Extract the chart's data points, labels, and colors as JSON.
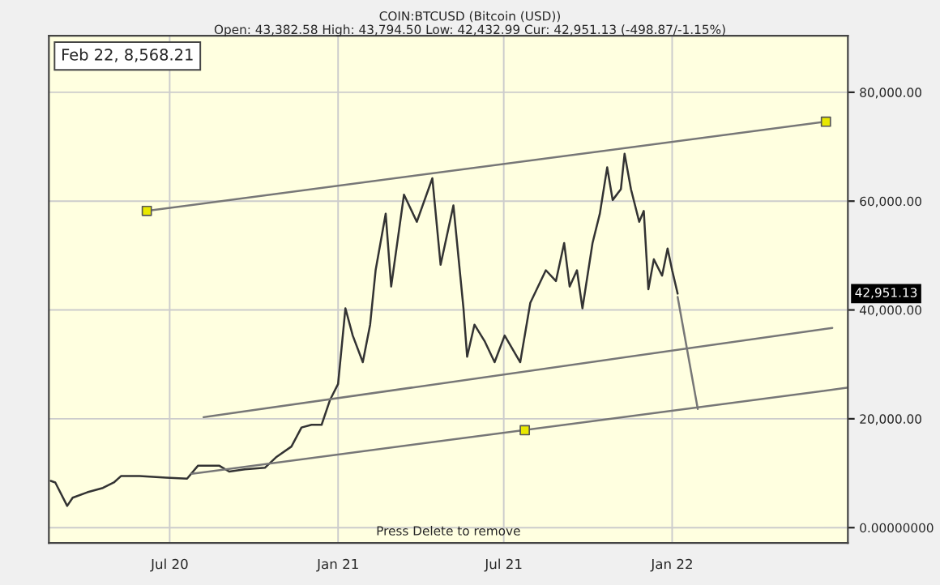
{
  "chart_data": {
    "type": "line",
    "title": "COIN:BTCUSD (Bitcoin (USD))",
    "subtitle": "Open: 43,382.58 High: 43,794.50 Low: 42,432.99 Cur: 42,951.13 (-498.87/-1.15%)",
    "annotations": [
      "Feb 22, 8,568.21",
      "Press Delete to remove",
      "42,951.13"
    ],
    "series": [
      {
        "color": "#333333",
        "x": [
          "2020-02-22",
          "2020-02-27",
          "2020-03-11",
          "2020-03-17",
          "2020-04-02",
          "2020-04-19",
          "2020-05-01",
          "2020-05-09",
          "2020-05-29",
          "2020-06-27",
          "2020-07-20",
          "2020-08-01",
          "2020-08-24",
          "2020-09-04",
          "2020-09-21",
          "2020-10-13",
          "2020-10-25",
          "2020-11-11",
          "2020-11-22",
          "2020-12-03",
          "2020-12-14",
          "2020-12-23",
          "2021-01-01",
          "2021-01-09",
          "2021-01-17",
          "2021-01-28",
          "2021-02-05",
          "2021-02-11",
          "2021-02-22",
          "2021-02-28",
          "2021-03-14",
          "2021-03-28",
          "2021-04-14",
          "2021-04-23",
          "2021-05-07",
          "2021-05-18",
          "2021-05-22",
          "2021-05-30",
          "2021-06-10",
          "2021-06-21",
          "2021-07-02",
          "2021-07-19",
          "2021-07-30",
          "2021-08-16",
          "2021-08-27",
          "2021-09-05",
          "2021-09-11",
          "2021-09-19",
          "2021-09-25",
          "2021-10-06",
          "2021-10-14",
          "2021-10-22",
          "2021-10-28",
          "2021-11-06",
          "2021-11-10",
          "2021-11-17",
          "2021-11-26",
          "2021-12-01",
          "2021-12-06",
          "2021-12-12",
          "2021-12-21",
          "2021-12-27",
          "2022-01-01",
          "2022-01-07"
        ],
        "values": [
          8600,
          8300,
          4000,
          5500,
          6500,
          7300,
          8300,
          9500,
          9500,
          9200,
          9000,
          11400,
          11400,
          10300,
          10700,
          11000,
          12900,
          14900,
          18400,
          18900,
          18900,
          23400,
          26400,
          40300,
          35300,
          30400,
          37300,
          47300,
          57700,
          44300,
          61200,
          56200,
          64200,
          48300,
          59200,
          40300,
          31400,
          37300,
          34300,
          30400,
          35300,
          30400,
          41300,
          47300,
          45300,
          52300,
          44300,
          47300,
          40300,
          52300,
          57700,
          66200,
          60200,
          62200,
          68700,
          62200,
          56200,
          58200,
          43800,
          49300,
          46300,
          51300,
          47300,
          43000
        ]
      },
      {
        "type": "line",
        "color": "#777777",
        "x": [
          "2020-06-06",
          "2022-06-18"
        ],
        "values": [
          58200,
          74600
        ]
      },
      {
        "type": "line",
        "color": "#777777",
        "x": [
          "2020-08-07",
          "2022-06-25"
        ],
        "values": [
          20300,
          36700
        ]
      },
      {
        "type": "line",
        "color": "#777777",
        "x": [
          "2020-07-25",
          "2022-07-11"
        ],
        "values": [
          9900,
          25700
        ]
      },
      {
        "type": "line",
        "color": "#777777",
        "x": [
          "2022-01-07",
          "2022-01-29"
        ],
        "values": [
          42400,
          21800
        ]
      },
      {
        "type": "scatter",
        "color": "#e8e800",
        "marker": "square",
        "x": [
          "2020-06-06",
          "2022-06-18",
          "2021-07-24"
        ],
        "values": [
          58200,
          74600,
          17900
        ]
      }
    ],
    "xlim": [
      "2020-02-20",
      "2022-07-12"
    ],
    "xticks": [
      {
        "value": "2020-07-01",
        "label": "Jul 20"
      },
      {
        "value": "2021-01-01",
        "label": "Jan 21"
      },
      {
        "value": "2021-07-01",
        "label": "Jul 21"
      },
      {
        "value": "2022-01-01",
        "label": "Jan 22"
      }
    ],
    "ylim": [
      -2800,
      90400
    ],
    "yticks": [
      {
        "value": 0,
        "label": "0.00000000"
      },
      {
        "value": 20000,
        "label": "20,000.00"
      },
      {
        "value": 40000,
        "label": "40,000.00"
      },
      {
        "value": 60000,
        "label": "60,000.00"
      },
      {
        "value": 80000,
        "label": "80,000.00"
      }
    ],
    "grid": true,
    "line_style": "solid"
  }
}
